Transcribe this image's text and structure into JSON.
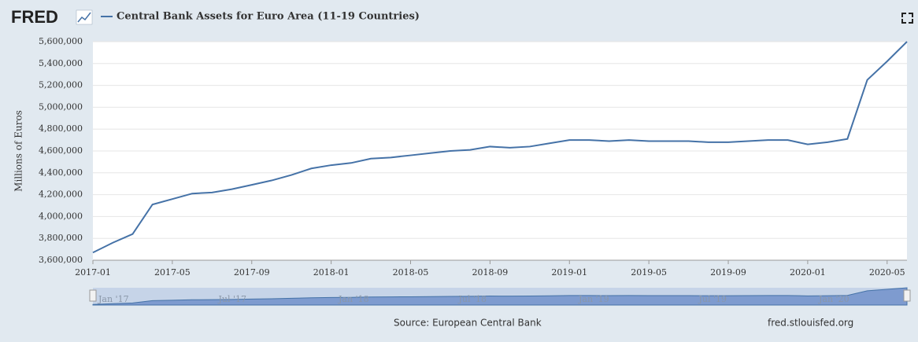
{
  "header": {
    "logo": "FRED"
  },
  "chart_data": {
    "type": "line",
    "y_label": "Millions of Euros",
    "x": [
      "2017-01",
      "2017-02",
      "2017-03",
      "2017-04",
      "2017-05",
      "2017-06",
      "2017-07",
      "2017-08",
      "2017-09",
      "2017-10",
      "2017-11",
      "2017-12",
      "2018-01",
      "2018-02",
      "2018-03",
      "2018-04",
      "2018-05",
      "2018-06",
      "2018-07",
      "2018-08",
      "2018-09",
      "2018-10",
      "2018-11",
      "2018-12",
      "2019-01",
      "2019-02",
      "2019-03",
      "2019-04",
      "2019-05",
      "2019-06",
      "2019-07",
      "2019-08",
      "2019-09",
      "2019-10",
      "2019-11",
      "2019-12",
      "2020-01",
      "2020-02",
      "2020-03",
      "2020-04",
      "2020-05",
      "2020-06"
    ],
    "series": [
      {
        "name": "Central Bank Assets for Euro Area (11-19 Countries)",
        "color": "#4572a7",
        "values": [
          3670000,
          3760000,
          3840000,
          4110000,
          4160000,
          4210000,
          4220000,
          4250000,
          4290000,
          4330000,
          4380000,
          4440000,
          4470000,
          4490000,
          4530000,
          4540000,
          4560000,
          4580000,
          4600000,
          4610000,
          4640000,
          4630000,
          4640000,
          4670000,
          4700000,
          4700000,
          4690000,
          4700000,
          4690000,
          4690000,
          4690000,
          4680000,
          4680000,
          4690000,
          4700000,
          4700000,
          4660000,
          4680000,
          4710000,
          5250000,
          5420000,
          5600000
        ]
      }
    ],
    "xlim": [
      "2017-01",
      "2020-06"
    ],
    "xticks": [
      "2017-01",
      "2017-05",
      "2017-09",
      "2018-01",
      "2018-05",
      "2018-09",
      "2019-01",
      "2019-05",
      "2019-09",
      "2020-01",
      "2020-05"
    ],
    "ylim": [
      3600000,
      5600000
    ],
    "yticks": [
      {
        "value": 3600000,
        "label": "3,600,000"
      },
      {
        "value": 3800000,
        "label": "3,800,000"
      },
      {
        "value": 4000000,
        "label": "4,000,000"
      },
      {
        "value": 4200000,
        "label": "4,200,000"
      },
      {
        "value": 4400000,
        "label": "4,400,000"
      },
      {
        "value": 4600000,
        "label": "4,600,000"
      },
      {
        "value": 4800000,
        "label": "4,800,000"
      },
      {
        "value": 5000000,
        "label": "5,000,000"
      },
      {
        "value": 5200000,
        "label": "5,200,000"
      },
      {
        "value": 5400000,
        "label": "5,400,000"
      },
      {
        "value": 5600000,
        "label": "5,600,000"
      }
    ],
    "grid": true
  },
  "navigator": {
    "labels": [
      "Jan '17",
      "Jul '17",
      "Jan '18",
      "Jul '18",
      "Jan '19",
      "Jul '19",
      "Jan '20"
    ]
  },
  "footer": {
    "source": "Source: European Central Bank",
    "url": "fred.stlouisfed.org"
  }
}
